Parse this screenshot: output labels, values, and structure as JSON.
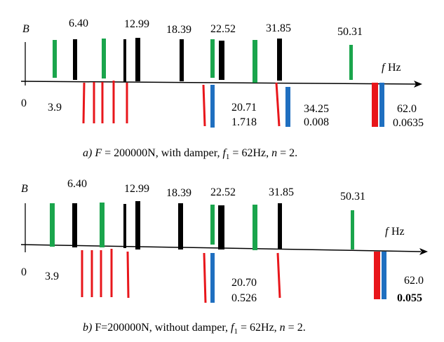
{
  "colors": {
    "green": "#1aa54c",
    "black": "#000000",
    "red": "#e8161b",
    "blue": "#1f6fc0"
  },
  "panels": [
    {
      "axis": {
        "y_label": "B",
        "x_label_var": "f",
        "x_label_unit": " Hz",
        "origin": "0"
      },
      "top_labels": [
        "6.40",
        "12.99",
        "18.39",
        "22.52",
        "31.85",
        "50.31"
      ],
      "bottom_labels": [
        "3.9",
        "20.71",
        "1.718",
        "34.25",
        "0.008",
        "62.0",
        "0.0635"
      ],
      "caption": {
        "p1": "a) ",
        "p2": "F",
        "p3": " = 200000N, with damper, ",
        "p4": "f",
        "p5": "1",
        "p6": " = 62Hz, ",
        "p7": "n",
        "p8": " = 2."
      }
    },
    {
      "axis": {
        "y_label": "B",
        "x_label_var": "f",
        "x_label_unit": " Hz",
        "origin": "0"
      },
      "top_labels": [
        "6.40",
        "12.99",
        "18.39",
        "22.52",
        "31.85",
        "50.31"
      ],
      "bottom_labels": [
        "3.9",
        "20.70",
        "0.526",
        "62.0",
        "0.055"
      ],
      "caption": {
        "p1": "b) ",
        "p3": "F=200000N, without damper, ",
        "p4": "f",
        "p5": "1",
        "p6": " = 62Hz, ",
        "p7": "n",
        "p8": " = 2."
      }
    }
  ]
}
